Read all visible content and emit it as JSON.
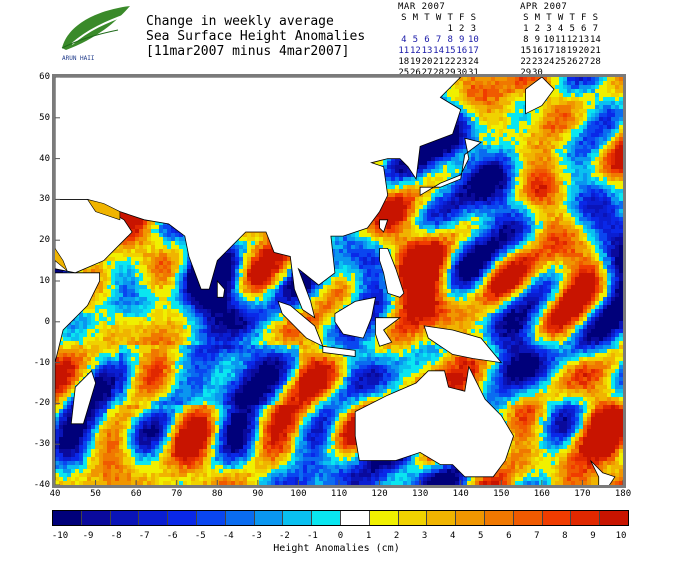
{
  "logo": {
    "icon": "leaf-logo-icon",
    "text": "ARUN HAII"
  },
  "title": {
    "line1": "Change in weekly average",
    "line2": "Sea Surface Height Anomalies",
    "line3": "[11mar2007 minus 4mar2007]"
  },
  "calendars": [
    {
      "header": "MAR 2007",
      "dows": [
        "S",
        "M",
        "T",
        "W",
        "T",
        "F",
        "S"
      ],
      "weeks": [
        [
          "",
          "",
          "",
          "",
          "1",
          "2",
          "3"
        ],
        [
          "4",
          "5",
          "6",
          "7",
          "8",
          "9",
          "10"
        ],
        [
          "11",
          "12",
          "13",
          "14",
          "15",
          "16",
          "17"
        ],
        [
          "18",
          "19",
          "20",
          "21",
          "22",
          "23",
          "24"
        ],
        [
          "25",
          "26",
          "27",
          "28",
          "29",
          "30",
          "31"
        ]
      ],
      "highlight_weeks": [
        1,
        2
      ]
    },
    {
      "header": "APR 2007",
      "dows": [
        "S",
        "M",
        "T",
        "W",
        "T",
        "F",
        "S"
      ],
      "weeks": [
        [
          "1",
          "2",
          "3",
          "4",
          "5",
          "6",
          "7"
        ],
        [
          "8",
          "9",
          "10",
          "11",
          "12",
          "13",
          "14"
        ],
        [
          "15",
          "16",
          "17",
          "18",
          "19",
          "20",
          "21"
        ],
        [
          "22",
          "23",
          "24",
          "25",
          "26",
          "27",
          "28"
        ],
        [
          "29",
          "30",
          "",
          "",
          "",
          "",
          ""
        ]
      ],
      "highlight_weeks": []
    }
  ],
  "map": {
    "lat_range": [
      -40,
      60
    ],
    "lon_range": [
      40,
      180
    ],
    "lat_ticks": [
      "60",
      "50",
      "40",
      "30",
      "20",
      "10",
      "0",
      "-10",
      "-20",
      "-30",
      "-40"
    ],
    "lon_ticks": [
      "40",
      "50",
      "60",
      "70",
      "80",
      "90",
      "100",
      "110",
      "120",
      "130",
      "140",
      "150",
      "160",
      "170",
      "180"
    ]
  },
  "colorbar": {
    "title": "Height Anomalies (cm)",
    "labels": [
      "-10",
      "-9",
      "-8",
      "-7",
      "-6",
      "-5",
      "-4",
      "-3",
      "-2",
      "-1",
      "0",
      "1",
      "2",
      "3",
      "4",
      "5",
      "6",
      "7",
      "8",
      "9",
      "10"
    ],
    "colors": [
      "#00007a",
      "#0a0a9c",
      "#0a14b8",
      "#0a1ed2",
      "#0a28e8",
      "#0a46f0",
      "#0a6cf0",
      "#0a96f0",
      "#0ac0f0",
      "#0ae6f0",
      "#ffffff",
      "#f0f000",
      "#f0d200",
      "#f0b400",
      "#f09600",
      "#f07800",
      "#f05a00",
      "#f03c00",
      "#e02800",
      "#c81400"
    ]
  }
}
